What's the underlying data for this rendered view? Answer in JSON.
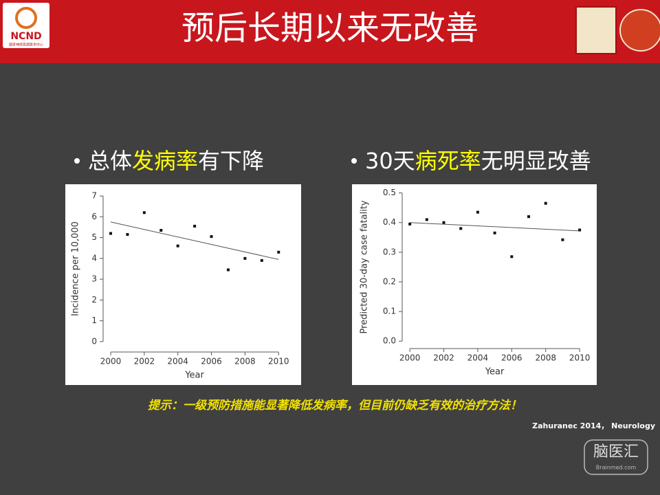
{
  "header": {
    "title": "预后长期以来无改善",
    "logo": "NCND",
    "logo_subtitle": "国家神经疾病医学中心"
  },
  "bullets": [
    [
      "总体",
      "发病率",
      "有下降"
    ],
    [
      "30天",
      "病死率",
      "无明显改善"
    ]
  ],
  "note": "提示：一级预防措施能显著降低发病率，但目前仍缺乏有效的治疗方法！",
  "citation": "Zahuranec 2014，  Neurology",
  "watermark": {
    "name": "脑医汇",
    "site": "Brainmed.com"
  },
  "chart_data": [
    {
      "type": "scatter",
      "x_label": "Year",
      "y_label": "Incidence per 10,000",
      "x": [
        2000,
        2001,
        2002,
        2003,
        2004,
        2005,
        2006,
        2007,
        2008,
        2009,
        2010
      ],
      "values": [
        5.2,
        5.15,
        6.2,
        5.35,
        4.6,
        5.55,
        5.05,
        3.45,
        4.0,
        3.9,
        4.3
      ],
      "trendline": {
        "x": [
          2000,
          2010
        ],
        "values": [
          5.75,
          3.95
        ]
      },
      "color": "#111111",
      "xlim": [
        1999.55,
        2010.4
      ],
      "xticks": [
        2000,
        2002,
        2004,
        2006,
        2008,
        2010
      ],
      "ylim": [
        -0.5,
        7.3
      ],
      "yticks": [
        0,
        1,
        2,
        3,
        4,
        5,
        6,
        7
      ]
    },
    {
      "type": "scatter",
      "x_label": "Year",
      "y_label": "Predicted 30-day case fatality",
      "x": [
        2000,
        2001,
        2002,
        2003,
        2004,
        2005,
        2006,
        2007,
        2008,
        2009,
        2010
      ],
      "values": [
        0.395,
        0.41,
        0.4,
        0.38,
        0.435,
        0.365,
        0.285,
        0.42,
        0.465,
        0.342,
        0.375
      ],
      "trendline": {
        "x": [
          2000,
          2010
        ],
        "values": [
          0.4,
          0.372
        ]
      },
      "color": "#111111",
      "xlim": [
        1999.55,
        2010.4
      ],
      "xticks": [
        2000,
        2002,
        2004,
        2006,
        2008,
        2010
      ],
      "ylim": [
        -0.025,
        0.52
      ],
      "yticks": [
        {
          "value": 0,
          "label": "0.0"
        },
        0.1,
        0.2,
        0.3,
        0.4,
        0.5
      ]
    }
  ]
}
